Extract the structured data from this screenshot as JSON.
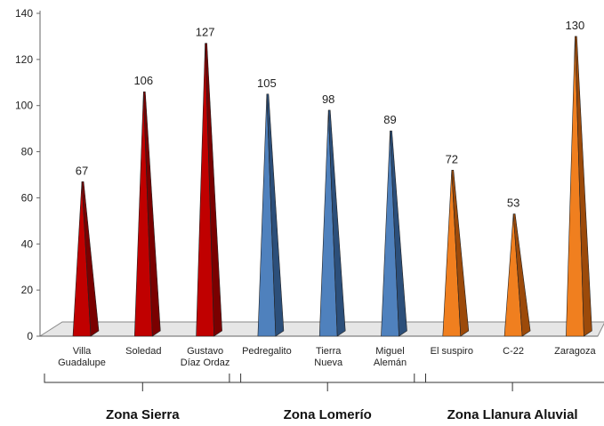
{
  "chart_data": {
    "type": "bar",
    "style": "3d-pyramid",
    "ylim": [
      0,
      140
    ],
    "yticks": [
      0,
      20,
      40,
      60,
      80,
      100,
      120,
      140
    ],
    "grid": false,
    "categories": [
      [
        "Villa",
        "Guadalupe"
      ],
      [
        "Soledad"
      ],
      [
        "Gustavo",
        "Díaz Ordaz"
      ],
      [
        "Pedregalito"
      ],
      [
        "Tierra",
        "Nueva"
      ],
      [
        "Miguel",
        "Alemán"
      ],
      [
        "El suspiro"
      ],
      [
        "C-22"
      ],
      [
        "Zaragoza"
      ]
    ],
    "values": [
      67,
      106,
      127,
      105,
      98,
      89,
      72,
      53,
      130
    ],
    "groups": [
      {
        "label": "Zona Sierra",
        "count": 3,
        "color": "#c00000",
        "dark": "#7a0000"
      },
      {
        "label": "Zona Lomerío",
        "count": 3,
        "color": "#4f81bd",
        "dark": "#2c4f7a"
      },
      {
        "label": "Zona Llanura Aluvial",
        "count": 3,
        "color": "#f07f1f",
        "dark": "#9c4a0a"
      }
    ]
  }
}
